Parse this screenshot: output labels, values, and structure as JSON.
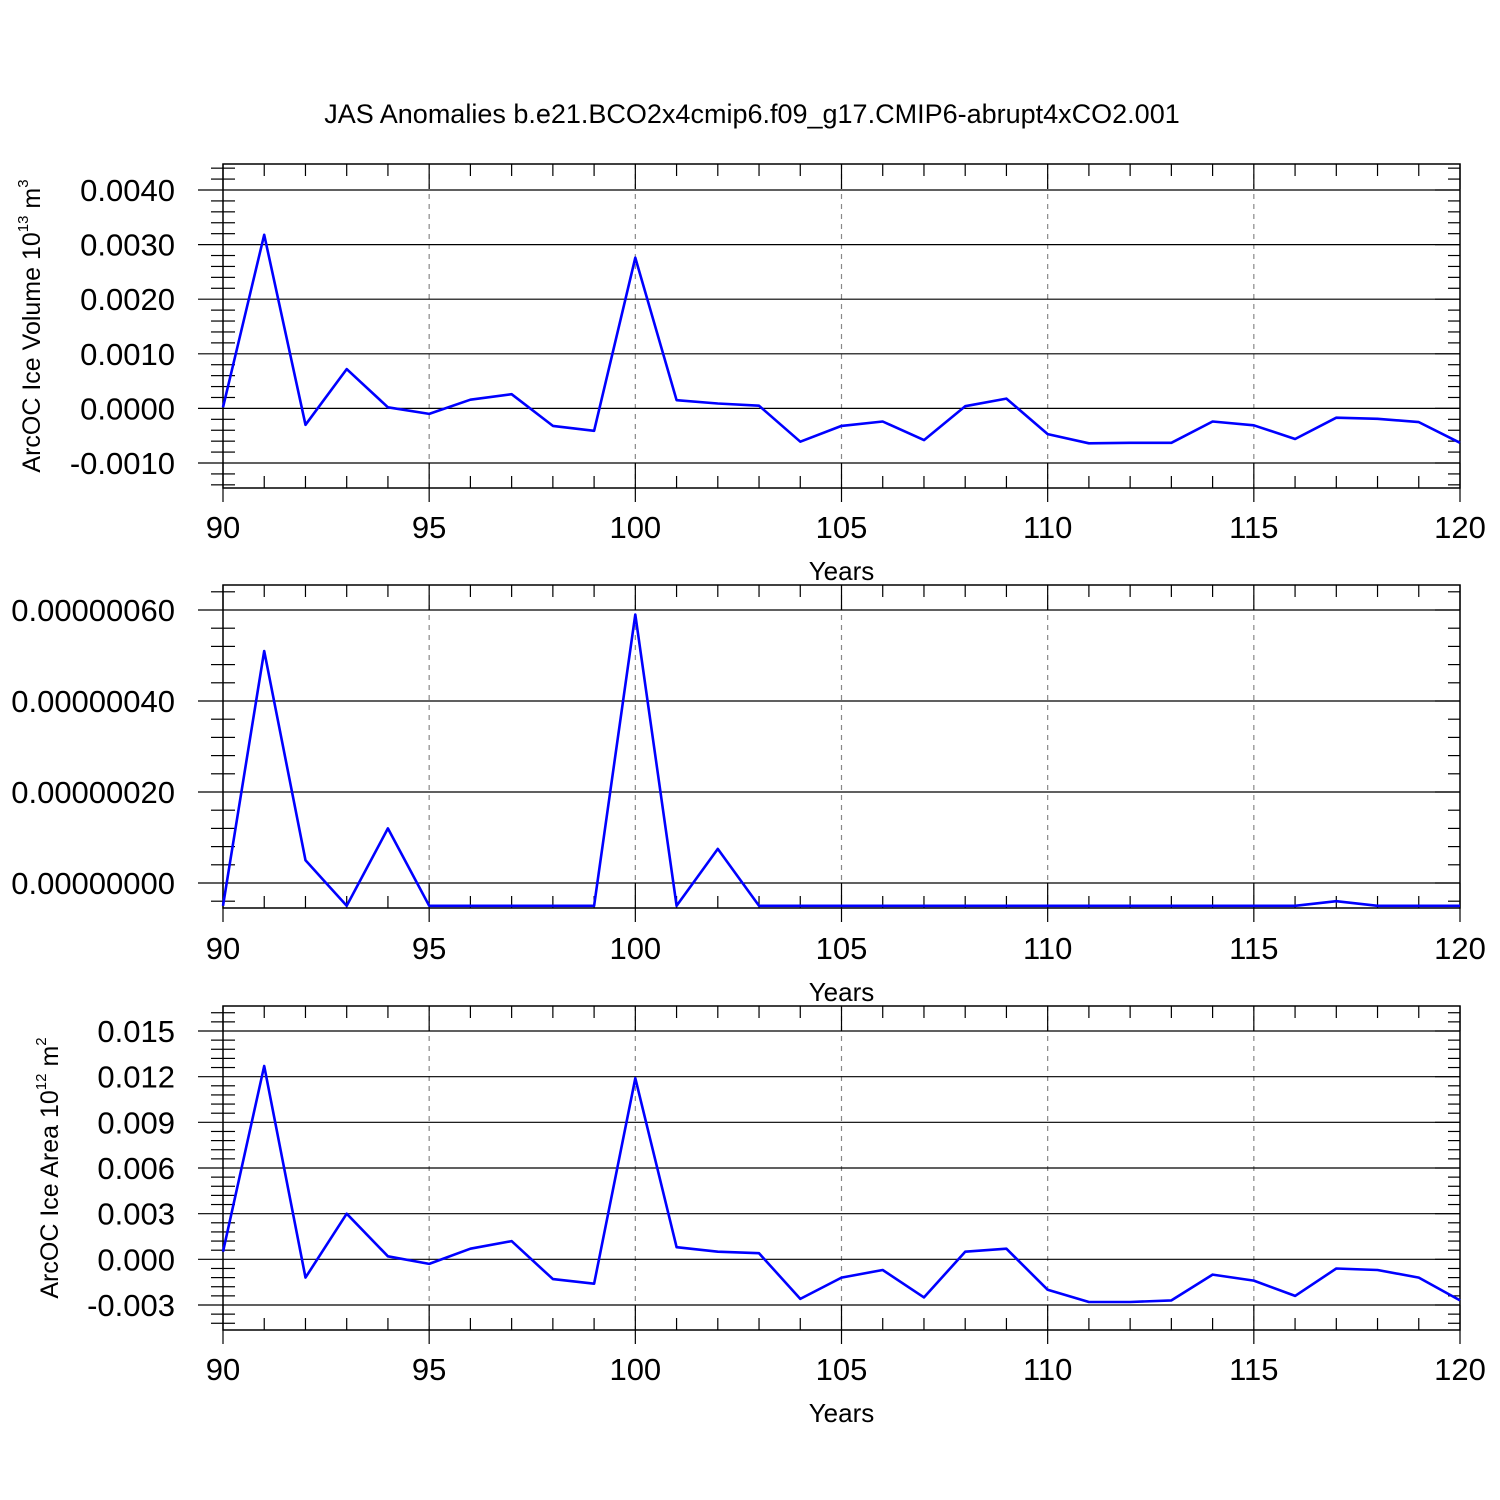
{
  "figure": {
    "title": "JAS Anomalies b.e21.BCO2x4cmip6.f09_g17.CMIP6-abrupt4xCO2.001",
    "line_color": "#0000ff",
    "grid_color": "#888888"
  },
  "chart_data": [
    {
      "type": "line",
      "xlabel": "Years",
      "ylabel": {
        "main": "ArcOC Ice Volume 10",
        "sup": "13",
        "unit": " m",
        "unit_sup": "3"
      },
      "xlim": [
        90,
        120
      ],
      "ylim": [
        -0.001,
        0.004
      ],
      "xticks": [
        90,
        95,
        100,
        105,
        110,
        115,
        120
      ],
      "xtick_labels": [
        "90",
        "95",
        "100",
        "105",
        "110",
        "115",
        "120"
      ],
      "yticks": [
        -0.001,
        0.0,
        0.001,
        0.002,
        0.003,
        0.004
      ],
      "ytick_labels": [
        "-0.0010",
        "0.0000",
        "0.0010",
        "0.0020",
        "0.0030",
        "0.0040"
      ],
      "grid_x": true,
      "series": [
        {
          "x": [
            90,
            91,
            92,
            93,
            94,
            95,
            96,
            97,
            98,
            99,
            100,
            101,
            102,
            103,
            104,
            105,
            106,
            107,
            108,
            109,
            110,
            111,
            112,
            113,
            114,
            115,
            116,
            117,
            118,
            119,
            120
          ],
          "values": [
            2e-05,
            0.00318,
            -0.0003,
            0.00072,
            2e-05,
            -0.0001,
            0.00016,
            0.00026,
            -0.00032,
            -0.00041,
            0.00276,
            0.00015,
            9e-05,
            5e-05,
            -0.00061,
            -0.00032,
            -0.00024,
            -0.00058,
            4e-05,
            0.00018,
            -0.00047,
            -0.00064,
            -0.00063,
            -0.00063,
            -0.00024,
            -0.00031,
            -0.00056,
            -0.00017,
            -0.00019,
            -0.00025,
            -0.00063
          ]
        }
      ]
    },
    {
      "type": "line",
      "xlabel": "Years",
      "ylabel": {
        "main": "",
        "sup": "",
        "unit": "",
        "unit_sup": ""
      },
      "xlim": [
        90,
        120
      ],
      "ylim": [
        -1e-07,
        6.6e-07
      ],
      "xticks": [
        90,
        95,
        100,
        105,
        110,
        115,
        120
      ],
      "xtick_labels": [
        "90",
        "95",
        "100",
        "105",
        "110",
        "115",
        "120"
      ],
      "yticks": [
        0.0,
        2e-07,
        4e-07,
        6e-07
      ],
      "ytick_labels": [
        "0.00000000",
        "0.00000020",
        "0.00000040",
        "0.00000060"
      ],
      "grid_x": true,
      "series": [
        {
          "x": [
            90,
            91,
            92,
            93,
            94,
            95,
            96,
            97,
            98,
            99,
            100,
            101,
            102,
            103,
            104,
            105,
            106,
            107,
            108,
            109,
            110,
            111,
            112,
            113,
            114,
            115,
            116,
            117,
            118,
            119,
            120
          ],
          "values": [
            -5e-08,
            5.1e-07,
            5e-08,
            -5e-08,
            1.2e-07,
            -5e-08,
            -5e-08,
            -5e-08,
            -5e-08,
            -5e-08,
            5.9e-07,
            -5e-08,
            7.5e-08,
            -5e-08,
            -5e-08,
            -5e-08,
            -5e-08,
            -5e-08,
            -5e-08,
            -5e-08,
            -5e-08,
            -5e-08,
            -5e-08,
            -5e-08,
            -5e-08,
            -5e-08,
            -5e-08,
            -4e-08,
            -5e-08,
            -5e-08,
            -5e-08
          ]
        }
      ]
    },
    {
      "type": "line",
      "xlabel": "Years",
      "ylabel": {
        "main": "ArcOC Ice Area 10",
        "sup": "12",
        "unit": " m",
        "unit_sup": "2"
      },
      "xlim": [
        90,
        120
      ],
      "ylim": [
        -0.003,
        0.015
      ],
      "xticks": [
        90,
        95,
        100,
        105,
        110,
        115,
        120
      ],
      "xtick_labels": [
        "90",
        "95",
        "100",
        "105",
        "110",
        "115",
        "120"
      ],
      "yticks": [
        -0.003,
        0.0,
        0.003,
        0.006,
        0.009,
        0.012,
        0.015
      ],
      "ytick_labels": [
        "-0.003",
        "0.000",
        "0.003",
        "0.006",
        "0.009",
        "0.012",
        "0.015"
      ],
      "grid_x": true,
      "series": [
        {
          "x": [
            90,
            91,
            92,
            93,
            94,
            95,
            96,
            97,
            98,
            99,
            100,
            101,
            102,
            103,
            104,
            105,
            106,
            107,
            108,
            109,
            110,
            111,
            112,
            113,
            114,
            115,
            116,
            117,
            118,
            119,
            120
          ],
          "values": [
            0.0005,
            0.0127,
            -0.0012,
            0.003,
            0.0002,
            -0.0003,
            0.0007,
            0.0012,
            -0.0013,
            -0.0016,
            0.0119,
            0.0008,
            0.0005,
            0.0004,
            -0.0026,
            -0.0012,
            -0.0007,
            -0.0025,
            0.0005,
            0.0007,
            -0.002,
            -0.0028,
            -0.0028,
            -0.0027,
            -0.001,
            -0.0014,
            -0.0024,
            -0.0006,
            -0.0007,
            -0.0012,
            -0.0027
          ]
        }
      ]
    }
  ]
}
